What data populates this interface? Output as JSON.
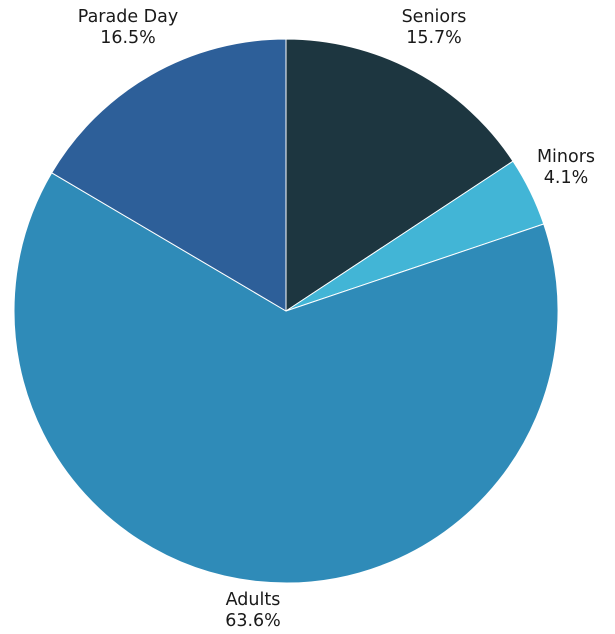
{
  "chart_data": {
    "type": "pie",
    "title": "",
    "start": "12 o'clock",
    "direction": "clockwise",
    "slices": [
      {
        "label": "Seniors",
        "value": 15.7,
        "value_label": "15.7%",
        "color": "#1d3640"
      },
      {
        "label": "Minors",
        "value": 4.1,
        "value_label": "4.1%",
        "color": "#42b5d6"
      },
      {
        "label": "Adults",
        "value": 63.6,
        "value_label": "63.6%",
        "color": "#2f8bb8"
      },
      {
        "label": "Parade Day",
        "value": 16.5,
        "value_label": "16.5%",
        "color": "#2d5f99"
      }
    ]
  }
}
